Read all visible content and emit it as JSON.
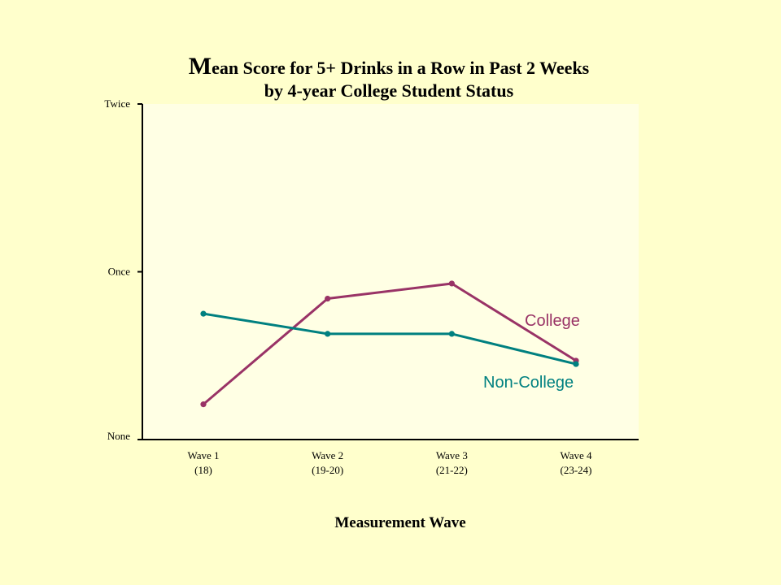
{
  "colors": {
    "background": "#FFFFCC",
    "axis": "#000000"
  },
  "chart_data": {
    "type": "line",
    "title": "Mean Score for 5+ Drinks in a Row in Past 2 Weeks",
    "subtitle": "by 4-year College Student Status",
    "xlabel": "Measurement Wave",
    "categories": [
      "Wave 1",
      "Wave 2",
      "Wave 3",
      "Wave 4"
    ],
    "category_sublabels": [
      "(18)",
      "(19-20)",
      "(21-22)",
      "(23-24)"
    ],
    "y_ticks": [
      {
        "value": 0,
        "label": "None"
      },
      {
        "value": 1,
        "label": "Once"
      },
      {
        "value": 2,
        "label": "Twice"
      }
    ],
    "ylim": [
      0,
      2
    ],
    "grid": false,
    "series": [
      {
        "name": "College",
        "color": "#993366",
        "values": [
          0.21,
          0.84,
          0.93,
          0.47
        ]
      },
      {
        "name": "Non-College",
        "color": "#008080",
        "values": [
          0.75,
          0.63,
          0.63,
          0.45
        ]
      }
    ]
  }
}
